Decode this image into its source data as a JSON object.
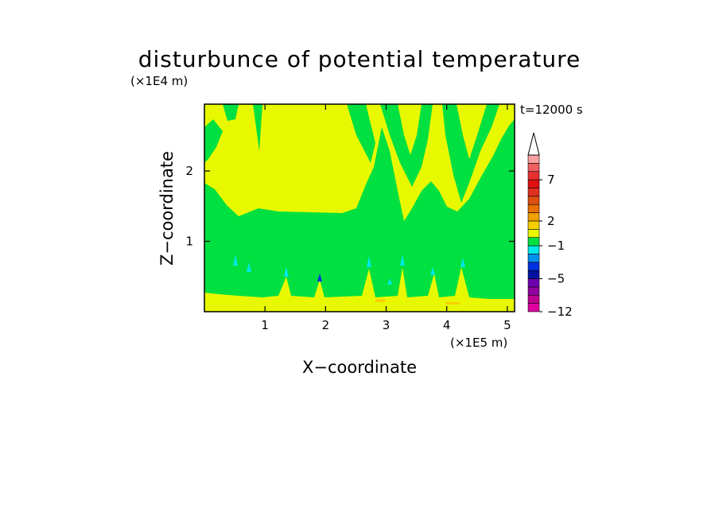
{
  "chart_data": {
    "type": "heatmap",
    "title": "disturbunce of potential temperature",
    "xlabel": "X−coordinate",
    "ylabel": "Z−coordinate",
    "x_unit": "(×1E5 m)",
    "y_unit": "(×1E4 m)",
    "time_label": "t=12000 s",
    "xlim": [
      0,
      5.12
    ],
    "ylim": [
      0,
      2.95
    ],
    "x_ticks": [
      "1",
      "2",
      "3",
      "4",
      "5"
    ],
    "y_ticks": [
      "1",
      "2"
    ],
    "colorbar": {
      "extend": "max",
      "levels": [
        -12,
        -10,
        -8,
        -6,
        -5,
        -4,
        -3,
        -2,
        -1,
        0,
        1,
        2,
        3,
        4,
        5,
        6,
        7,
        8,
        9,
        10
      ],
      "colors": [
        "#e000a0",
        "#c00090",
        "#9000a0",
        "#7000b0",
        "#0010a0",
        "#0030e0",
        "#0090f0",
        "#00e8e8",
        "#00e040",
        "#e8f800",
        "#f8d000",
        "#f0a000",
        "#e87000",
        "#e05010",
        "#e03020",
        "#e01010",
        "#e83030",
        "#f06060",
        "#f8a0a0"
      ],
      "tick_labels": [
        "−12",
        "−5",
        "−1",
        "2",
        "7"
      ]
    },
    "regions": {
      "background_color": "#00e040",
      "warm_color": "#e8f800",
      "warm_strong_color": "#f8d000",
      "cold_color": "#00e8e8",
      "deep_cold_color": "#0030e0"
    }
  }
}
